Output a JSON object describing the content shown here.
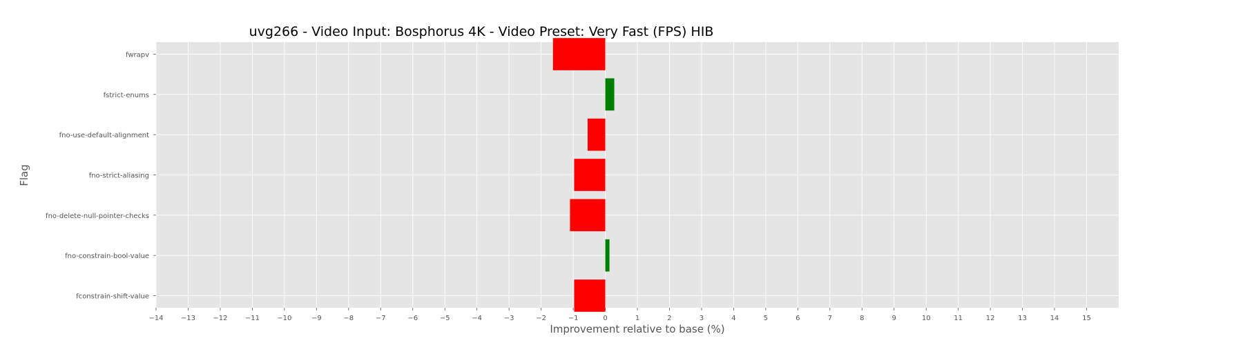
{
  "chart_data": {
    "type": "bar",
    "orientation": "horizontal",
    "title": "uvg266 - Video Input: Bosphorus 4K - Video Preset: Very Fast (FPS) HIB",
    "xlabel": "Improvement relative to base (%)",
    "ylabel": "Flag",
    "xlim": [
      -14,
      16
    ],
    "x_ticks": [
      -14,
      -13,
      -12,
      -11,
      -10,
      -9,
      -8,
      -7,
      -6,
      -5,
      -4,
      -3,
      -2,
      -1,
      0,
      1,
      2,
      3,
      4,
      5,
      6,
      7,
      8,
      9,
      10,
      11,
      12,
      13,
      14,
      15
    ],
    "grid": true,
    "categories": [
      "fwrapv",
      "fstrict-enums",
      "fno-use-default-alignment",
      "fno-strict-aliasing",
      "fno-delete-null-pointer-checks",
      "fno-constrain-bool-value",
      "fconstrain-shift-value"
    ],
    "values": [
      -1.63,
      0.28,
      -0.55,
      -0.97,
      -1.1,
      0.13,
      -0.97
    ],
    "colors": {
      "positive": "#008000",
      "negative": "#ff0000",
      "plot_background": "#e5e5e5",
      "grid": "#ffffff",
      "text": "#555555"
    }
  }
}
